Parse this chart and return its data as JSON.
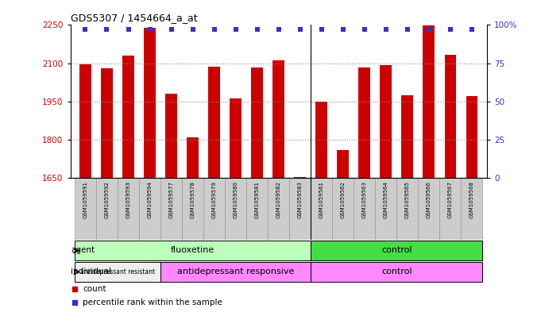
{
  "title": "GDS5307 / 1454664_a_at",
  "samples": [
    "GSM1059591",
    "GSM1059592",
    "GSM1059593",
    "GSM1059594",
    "GSM1059577",
    "GSM1059578",
    "GSM1059579",
    "GSM1059580",
    "GSM1059581",
    "GSM1059582",
    "GSM1059583",
    "GSM1059561",
    "GSM1059562",
    "GSM1059563",
    "GSM1059564",
    "GSM1059565",
    "GSM1059566",
    "GSM1059567",
    "GSM1059568"
  ],
  "counts": [
    2095,
    2080,
    2130,
    2238,
    1980,
    1808,
    2085,
    1960,
    2082,
    2110,
    1652,
    1950,
    1760,
    2082,
    2092,
    1975,
    2248,
    2133,
    1970
  ],
  "percentiles": [
    97,
    97,
    97,
    97,
    97,
    97,
    97,
    97,
    97,
    97,
    97,
    97,
    97,
    97,
    97,
    97,
    97,
    97,
    97
  ],
  "ylim_left": [
    1650,
    2250
  ],
  "ylim_right": [
    0,
    100
  ],
  "yticks_left": [
    1650,
    1800,
    1950,
    2100,
    2250
  ],
  "yticks_right": [
    0,
    25,
    50,
    75,
    100
  ],
  "bar_color": "#cc0000",
  "dot_color": "#3333cc",
  "agent_groups": [
    {
      "label": "fluoxetine",
      "start": 0,
      "end": 11,
      "color": "#bbffbb"
    },
    {
      "label": "control",
      "start": 11,
      "end": 19,
      "color": "#44dd44"
    }
  ],
  "individual_groups": [
    {
      "label": "antidepressant resistant",
      "start": 0,
      "end": 4,
      "color": "#eeeeee"
    },
    {
      "label": "antidepressant responsive",
      "start": 4,
      "end": 11,
      "color": "#ff88ff"
    },
    {
      "label": "control",
      "start": 11,
      "end": 19,
      "color": "#ff88ff"
    }
  ],
  "legend_count_color": "#cc0000",
  "legend_dot_color": "#3333cc",
  "plot_bg": "#ffffff",
  "xtick_bg": "#cccccc",
  "right_axis_label": "100%"
}
